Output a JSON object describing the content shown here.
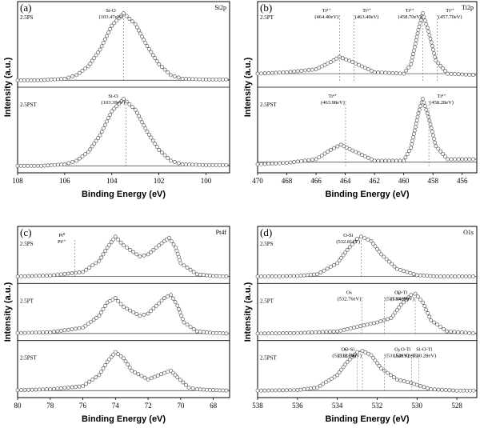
{
  "chart_data": [
    {
      "panel": "(a)",
      "corner": "Si2p",
      "type": "line",
      "xlabel": "Binding Energy (eV)",
      "ylabel": "Intensity (a.u.)",
      "xlim": [
        108,
        99
      ],
      "xticks": [
        "108",
        "106",
        "104",
        "102",
        "100"
      ],
      "rows": [
        {
          "sample": "2.5PS",
          "baseline": 0.03,
          "points": [
            [
              108,
              0.03
            ],
            [
              107,
              0.03
            ],
            [
              106,
              0.05
            ],
            [
              105.5,
              0.1
            ],
            [
              105,
              0.22
            ],
            [
              104.5,
              0.45
            ],
            [
              104,
              0.78
            ],
            [
              103.5,
              0.95
            ],
            [
              103,
              0.8
            ],
            [
              102.5,
              0.5
            ],
            [
              102,
              0.25
            ],
            [
              101.5,
              0.1
            ],
            [
              101,
              0.05
            ],
            [
              100,
              0.04
            ],
            [
              99,
              0.04
            ]
          ],
          "annotations": [
            {
              "text": "Si-O",
              "x": 103.5
            },
            {
              "text": "(103.47eV)",
              "x": 103.5
            }
          ]
        },
        {
          "sample": "2.5PST",
          "baseline": 0.03,
          "points": [
            [
              108,
              0.03
            ],
            [
              107,
              0.03
            ],
            [
              106,
              0.05
            ],
            [
              105.5,
              0.1
            ],
            [
              105,
              0.22
            ],
            [
              104.5,
              0.45
            ],
            [
              104,
              0.78
            ],
            [
              103.5,
              0.95
            ],
            [
              103,
              0.8
            ],
            [
              102.5,
              0.5
            ],
            [
              102,
              0.25
            ],
            [
              101.5,
              0.1
            ],
            [
              101,
              0.05
            ],
            [
              100,
              0.04
            ],
            [
              99,
              0.04
            ]
          ],
          "annotations": [
            {
              "text": "Si-O",
              "x": 103.4
            },
            {
              "text": "(103.39eV)",
              "x": 103.4
            }
          ]
        }
      ]
    },
    {
      "panel": "(b)",
      "corner": "Ti2p",
      "type": "line",
      "xlabel": "Binding Energy (eV)",
      "ylabel": "Intensity (a.u.)",
      "xlim": [
        470,
        455
      ],
      "xticks": [
        "470",
        "468",
        "466",
        "464",
        "462",
        "460",
        "458",
        "456"
      ],
      "rows": [
        {
          "sample": "2.5PT",
          "baseline": 0.12,
          "points": [
            [
              470,
              0.12
            ],
            [
              468,
              0.14
            ],
            [
              466,
              0.18
            ],
            [
              465,
              0.28
            ],
            [
              464.4,
              0.35
            ],
            [
              463.5,
              0.28
            ],
            [
              462,
              0.14
            ],
            [
              460,
              0.12
            ],
            [
              459.5,
              0.25
            ],
            [
              459,
              0.72
            ],
            [
              458.7,
              0.95
            ],
            [
              458.3,
              0.7
            ],
            [
              457.8,
              0.3
            ],
            [
              457,
              0.12
            ],
            [
              455,
              0.1
            ]
          ],
          "annotations": [
            {
              "text": "Ti⁴⁺",
              "x": 464.4
            },
            {
              "text": "(464.40eV)",
              "x": 464.4
            },
            {
              "text": "Ti³⁺",
              "x": 463.4
            },
            {
              "text": "(463.40eV)",
              "x": 463.4
            },
            {
              "text": "Ti⁴⁺",
              "x": 458.7
            },
            {
              "text": "(458.70eV)",
              "x": 458.7
            },
            {
              "text": "Ti³⁺",
              "x": 457.7
            },
            {
              "text": "(457.70eV)",
              "x": 457.7
            }
          ]
        },
        {
          "sample": "2.5PST",
          "baseline": 0.08,
          "points": [
            [
              470,
              0.05
            ],
            [
              468,
              0.07
            ],
            [
              466,
              0.12
            ],
            [
              465,
              0.25
            ],
            [
              464.3,
              0.32
            ],
            [
              463.5,
              0.24
            ],
            [
              462,
              0.1
            ],
            [
              460,
              0.1
            ],
            [
              459.5,
              0.28
            ],
            [
              459,
              0.75
            ],
            [
              458.7,
              0.95
            ],
            [
              458.3,
              0.7
            ],
            [
              457.8,
              0.3
            ],
            [
              457,
              0.12
            ],
            [
              455,
              0.12
            ]
          ],
          "annotations": [
            {
              "text": "Ti⁴⁺",
              "x": 463.98
            },
            {
              "text": "(463.98eV)",
              "x": 463.98
            },
            {
              "text": "Ti⁴⁺",
              "x": 458.28
            },
            {
              "text": "(458.28eV)",
              "x": 458.28
            }
          ]
        }
      ]
    },
    {
      "panel": "(c)",
      "corner": "Pt4f",
      "type": "line",
      "xlabel": "Binding Energy (eV)",
      "ylabel": "Intensity (a.u.)",
      "xlim": [
        80,
        67
      ],
      "xticks": [
        "80",
        "78",
        "76",
        "74",
        "72",
        "70",
        "68"
      ],
      "rows": [
        {
          "sample": "2.5PS",
          "baseline": 0.05,
          "points": [
            [
              80,
              0.05
            ],
            [
              78,
              0.07
            ],
            [
              76,
              0.15
            ],
            [
              75,
              0.4
            ],
            [
              74.5,
              0.7
            ],
            [
              74,
              0.95
            ],
            [
              73.5,
              0.75
            ],
            [
              72.5,
              0.5
            ],
            [
              72,
              0.55
            ],
            [
              71,
              0.85
            ],
            [
              70.7,
              0.92
            ],
            [
              70.3,
              0.7
            ],
            [
              70,
              0.35
            ],
            [
              69,
              0.1
            ],
            [
              68,
              0.06
            ],
            [
              67,
              0.05
            ]
          ],
          "annotations": [
            {
              "text": "Pt⁰",
              "x": 76.5
            },
            {
              "text": "Pt²⁺",
              "x": 76.5
            }
          ]
        },
        {
          "sample": "2.5PT",
          "baseline": 0.05,
          "points": [
            [
              80,
              0.06
            ],
            [
              78,
              0.08
            ],
            [
              76,
              0.18
            ],
            [
              75,
              0.45
            ],
            [
              74.5,
              0.75
            ],
            [
              74,
              0.85
            ],
            [
              73.5,
              0.65
            ],
            [
              72.5,
              0.45
            ],
            [
              72,
              0.5
            ],
            [
              71,
              0.85
            ],
            [
              70.6,
              0.92
            ],
            [
              70.2,
              0.68
            ],
            [
              69.8,
              0.3
            ],
            [
              69,
              0.1
            ],
            [
              68,
              0.06
            ],
            [
              67,
              0.05
            ]
          ],
          "annotations": []
        },
        {
          "sample": "2.5PST",
          "baseline": 0.05,
          "points": [
            [
              80,
              0.06
            ],
            [
              78,
              0.08
            ],
            [
              76,
              0.15
            ],
            [
              75,
              0.4
            ],
            [
              74.5,
              0.7
            ],
            [
              74,
              0.92
            ],
            [
              73.5,
              0.78
            ],
            [
              73,
              0.5
            ],
            [
              72,
              0.3
            ],
            [
              71,
              0.45
            ],
            [
              70.6,
              0.5
            ],
            [
              70.2,
              0.35
            ],
            [
              69.5,
              0.12
            ],
            [
              69,
              0.08
            ],
            [
              68,
              0.06
            ],
            [
              67,
              0.05
            ]
          ],
          "annotations": []
        }
      ]
    },
    {
      "panel": "(d)",
      "corner": "O1s",
      "type": "line",
      "xlabel": "Binding Energy (eV)",
      "ylabel": "Intensity (a.u.)",
      "xlim": [
        538,
        527
      ],
      "xticks": [
        "538",
        "536",
        "534",
        "532",
        "530",
        "528"
      ],
      "rows": [
        {
          "sample": "2.5PS",
          "baseline": 0.05,
          "points": [
            [
              538,
              0.05
            ],
            [
              536,
              0.06
            ],
            [
              535,
              0.1
            ],
            [
              534,
              0.35
            ],
            [
              533.5,
              0.65
            ],
            [
              533,
              0.9
            ],
            [
              532.8,
              0.95
            ],
            [
              532.3,
              0.85
            ],
            [
              531.8,
              0.55
            ],
            [
              531,
              0.22
            ],
            [
              530,
              0.08
            ],
            [
              529,
              0.05
            ],
            [
              527,
              0.05
            ]
          ],
          "annotations": [
            {
              "text": "O-Si",
              "x": 532.81
            },
            {
              "text": "(532.81eV)",
              "x": 532.81
            }
          ]
        },
        {
          "sample": "2.5PT",
          "baseline": 0.05,
          "points": [
            [
              538,
              0.05
            ],
            [
              536,
              0.06
            ],
            [
              534,
              0.1
            ],
            [
              533,
              0.2
            ],
            [
              532,
              0.3
            ],
            [
              531.3,
              0.4
            ],
            [
              530.8,
              0.7
            ],
            [
              530.3,
              0.92
            ],
            [
              530.09,
              0.95
            ],
            [
              529.7,
              0.75
            ],
            [
              529.3,
              0.35
            ],
            [
              528.5,
              0.1
            ],
            [
              527,
              0.05
            ]
          ],
          "annotations": [
            {
              "text": "O-Ti",
              "x": 530.09
            },
            {
              "text": "(530.09eV)",
              "x": 530.09
            },
            {
              "text": "Oᵦ",
              "x": 531.64
            },
            {
              "text": "(531.64eV)",
              "x": 531.64
            },
            {
              "text": "Oₕ",
              "x": 532.76
            },
            {
              "text": "(532.76eV)",
              "x": 532.76
            }
          ]
        },
        {
          "sample": "2.5PST",
          "baseline": 0.05,
          "points": [
            [
              538,
              0.05
            ],
            [
              536,
              0.06
            ],
            [
              535,
              0.12
            ],
            [
              534,
              0.4
            ],
            [
              533.5,
              0.7
            ],
            [
              533,
              0.92
            ],
            [
              532.74,
              0.95
            ],
            [
              532.3,
              0.85
            ],
            [
              531.8,
              0.55
            ],
            [
              531,
              0.3
            ],
            [
              530.3,
              0.22
            ],
            [
              530,
              0.18
            ],
            [
              529.3,
              0.08
            ],
            [
              528,
              0.05
            ],
            [
              527,
              0.05
            ]
          ],
          "annotations": [
            {
              "text": "O-Si",
              "x": 532.74
            },
            {
              "text": "(532.74eV)",
              "x": 532.74
            },
            {
              "text": "Oᵦ",
              "x": 531.64
            },
            {
              "text": "(531.64eV)",
              "x": 531.64
            },
            {
              "text": "Oₕ",
              "x": 533.01
            },
            {
              "text": "(533.01eV)",
              "x": 533.01
            },
            {
              "text": "Si-O-Ti",
              "x": 530.28
            },
            {
              "text": "(530.28eV)",
              "x": 530.28
            },
            {
              "text": "O-Ti",
              "x": 529.92
            },
            {
              "text": "(529.92eV)",
              "x": 529.92
            }
          ]
        }
      ]
    }
  ]
}
